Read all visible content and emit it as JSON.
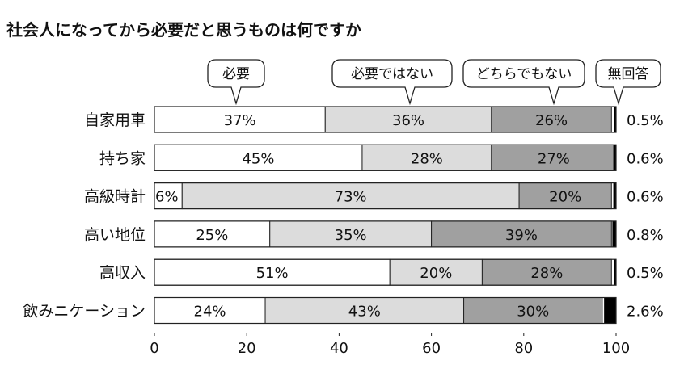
{
  "chart_data": {
    "type": "bar",
    "orientation": "horizontal",
    "stacked": true,
    "title": "社会人になってから必要だと思うものは何ですか",
    "categories": [
      "自家用車",
      "持ち家",
      "高級時計",
      "高い地位",
      "高収入",
      "飲みニケーション"
    ],
    "series": [
      {
        "name": "必要",
        "color": "#ffffff",
        "values": [
          37,
          45,
          6,
          25,
          51,
          24
        ],
        "labels": [
          "37%",
          "45%",
          "6%",
          "25%",
          "51%",
          "24%"
        ]
      },
      {
        "name": "必要ではない",
        "color": "#dcdcdc",
        "values": [
          36,
          28,
          73,
          35,
          20,
          43
        ],
        "labels": [
          "36%",
          "28%",
          "73%",
          "35%",
          "20%",
          "43%"
        ]
      },
      {
        "name": "どちらでもない",
        "color": "#a0a0a0",
        "values": [
          26,
          27,
          20,
          39,
          28,
          30
        ],
        "labels": [
          "26%",
          "27%",
          "20%",
          "39%",
          "28%",
          "30%"
        ]
      },
      {
        "name": "無回答",
        "color": "#000000",
        "values": [
          0.5,
          0.6,
          0.6,
          0.8,
          0.5,
          2.6
        ],
        "labels": [
          "0.5%",
          "0.6%",
          "0.6%",
          "0.8%",
          "0.5%",
          "2.6%"
        ]
      }
    ],
    "xlim": [
      0,
      100
    ],
    "xticks": [
      0,
      20,
      40,
      60,
      80,
      100
    ],
    "grid": false,
    "legend": "top"
  }
}
